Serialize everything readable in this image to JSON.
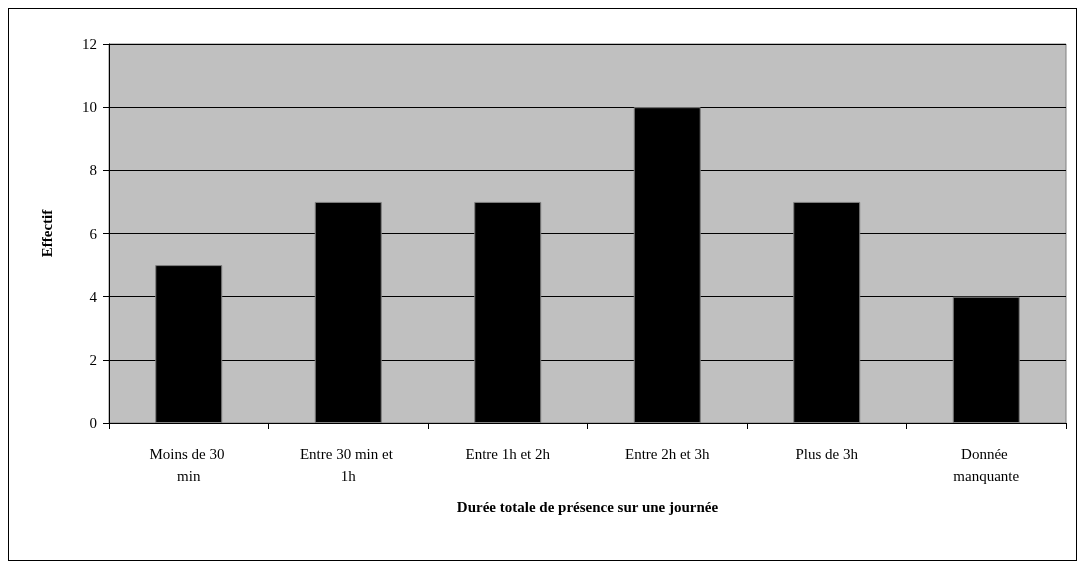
{
  "chart_data": {
    "type": "bar",
    "xlabel": "Durée totale de présence sur une journée",
    "ylabel": "Effectif",
    "categories": [
      "Moins de 30 min",
      "Entre 30 min et 1h",
      "Entre 1h et 2h",
      "Entre 2h et 3h",
      "Plus de 3h",
      "Donnée manquante"
    ],
    "values": [
      5,
      7,
      7,
      10,
      7,
      4
    ],
    "color": "#000000",
    "ylim": [
      0,
      12
    ],
    "yticks": [
      0,
      2,
      4,
      6,
      8,
      10,
      12
    ],
    "grid": "y"
  }
}
